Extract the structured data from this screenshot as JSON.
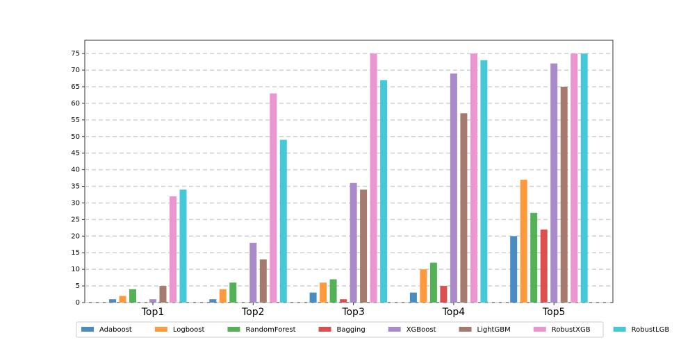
{
  "chart_data": {
    "type": "bar",
    "categories": [
      "Top1",
      "Top2",
      "Top3",
      "Top4",
      "Top5"
    ],
    "series": [
      {
        "name": "Adaboost",
        "color": "#4a8cc2",
        "values": [
          1,
          1,
          3,
          3,
          20
        ]
      },
      {
        "name": "Logboost",
        "color": "#ff9a3c",
        "values": [
          2,
          4,
          6,
          10,
          37
        ]
      },
      {
        "name": "RandomForest",
        "color": "#55b155",
        "values": [
          4,
          6,
          7,
          12,
          27
        ]
      },
      {
        "name": "Bagging",
        "color": "#dd4f4f",
        "values": [
          0,
          0,
          1,
          5,
          22
        ]
      },
      {
        "name": "XGBoost",
        "color": "#a98acb",
        "values": [
          1,
          18,
          36,
          69,
          72
        ]
      },
      {
        "name": "LightGBM",
        "color": "#a57b70",
        "values": [
          5,
          13,
          34,
          57,
          65
        ]
      },
      {
        "name": "RobustXGB",
        "color": "#ec96d1",
        "values": [
          32,
          63,
          75,
          75,
          75
        ]
      },
      {
        "name": "RobustLGB",
        "color": "#45c9d6",
        "values": [
          34,
          49,
          67,
          73,
          75
        ]
      }
    ],
    "ylim": [
      0,
      79
    ],
    "yticks": [
      0,
      5,
      10,
      15,
      20,
      25,
      30,
      35,
      40,
      45,
      50,
      55,
      60,
      65,
      70,
      75
    ],
    "grid": true,
    "legend": "bottom"
  }
}
